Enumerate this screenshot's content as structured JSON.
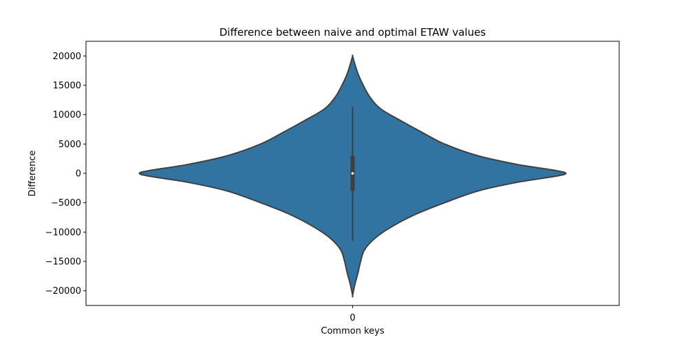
{
  "chart_data": {
    "type": "violin",
    "title": "Difference between naive and optimal ETAW values",
    "xlabel": "Common keys",
    "ylabel": "Difference",
    "categories": [
      "0"
    ],
    "ylim": [
      -22500,
      22500
    ],
    "yticks": [
      20000,
      15000,
      10000,
      5000,
      0,
      -5000,
      -10000,
      -15000,
      -20000
    ],
    "ytick_labels": [
      "20000",
      "15000",
      "10000",
      "5000",
      "0",
      "−5000",
      "−10000",
      "−15000",
      "−20000"
    ],
    "grid": false,
    "legend": "none",
    "colors": {
      "fill": "#3274a1",
      "outline": "#3f3f3f",
      "box": "#3f3f3f",
      "median": "#ffffff"
    },
    "density_profile": [
      {
        "y": 20000,
        "half_width": 0.0
      },
      {
        "y": 19000,
        "half_width": 0.006
      },
      {
        "y": 17000,
        "half_width": 0.02
      },
      {
        "y": 15000,
        "half_width": 0.04
      },
      {
        "y": 13000,
        "half_width": 0.065
      },
      {
        "y": 11000,
        "half_width": 0.105
      },
      {
        "y": 9000,
        "half_width": 0.18
      },
      {
        "y": 7000,
        "half_width": 0.26
      },
      {
        "y": 5000,
        "half_width": 0.345
      },
      {
        "y": 3000,
        "half_width": 0.47
      },
      {
        "y": 1500,
        "half_width": 0.62
      },
      {
        "y": 500,
        "half_width": 0.76
      },
      {
        "y": 0,
        "half_width": 0.8
      },
      {
        "y": -500,
        "half_width": 0.76
      },
      {
        "y": -1500,
        "half_width": 0.62
      },
      {
        "y": -3000,
        "half_width": 0.47
      },
      {
        "y": -5000,
        "half_width": 0.345
      },
      {
        "y": -7000,
        "half_width": 0.235
      },
      {
        "y": -9000,
        "half_width": 0.15
      },
      {
        "y": -11000,
        "half_width": 0.085
      },
      {
        "y": -13000,
        "half_width": 0.045
      },
      {
        "y": -15000,
        "half_width": 0.03
      },
      {
        "y": -17000,
        "half_width": 0.02
      },
      {
        "y": -19000,
        "half_width": 0.008
      },
      {
        "y": -20800,
        "half_width": 0.0
      }
    ],
    "box": {
      "q1": -3000,
      "median": 0,
      "q3": 3000,
      "whisker_low": -11500,
      "whisker_high": 11300
    }
  }
}
